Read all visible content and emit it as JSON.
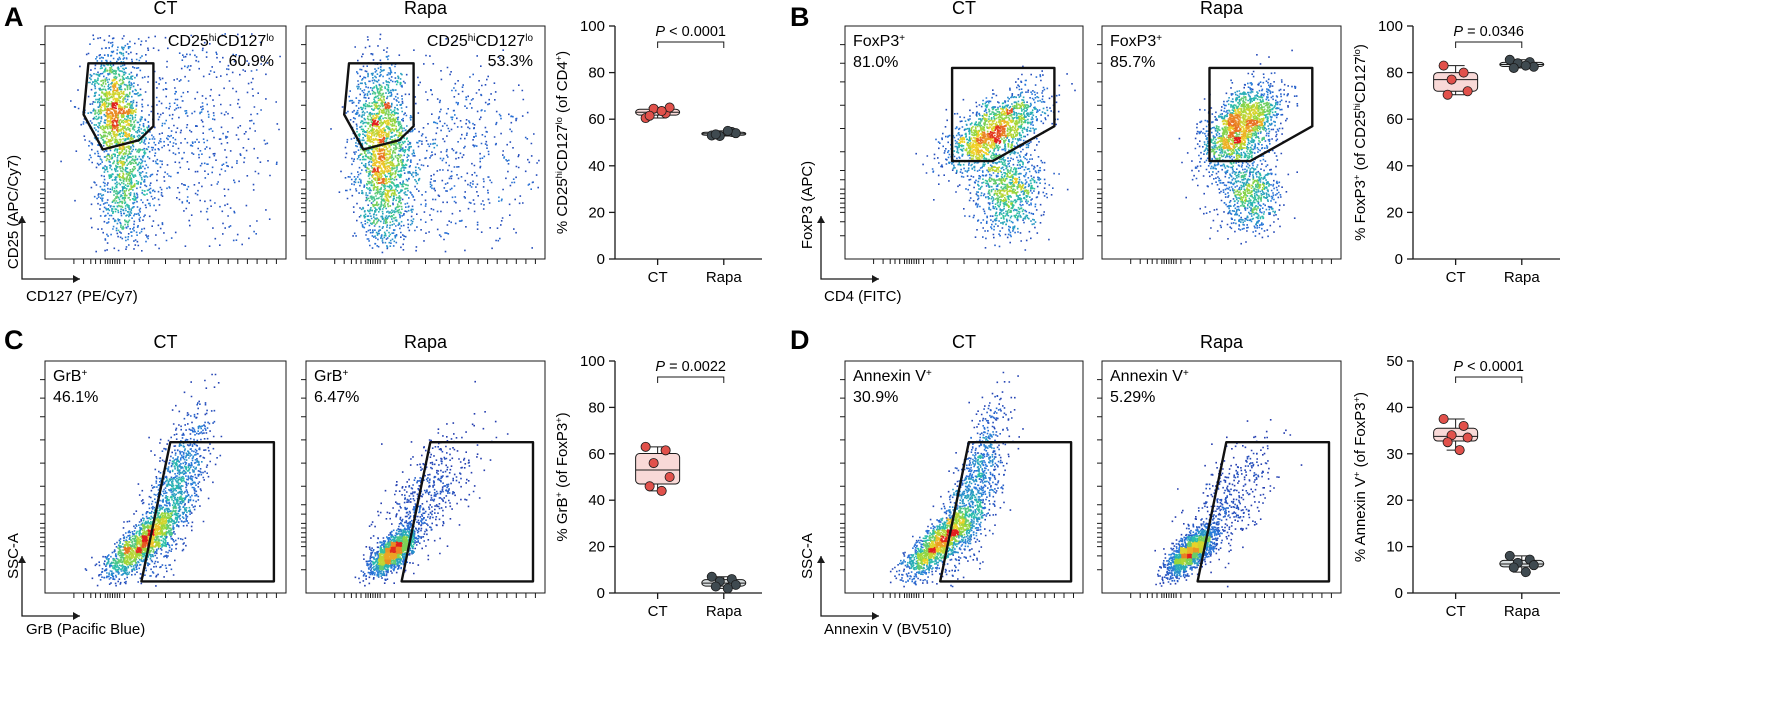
{
  "figure": {
    "panels": [
      {
        "letter": "A",
        "xlabel": "CD127 (PE/Cy7)",
        "ylabel": "CD25 (APC/Cy7)",
        "flow": [
          {
            "title": "CT",
            "gate_label": "CD25hiCD127lo",
            "percent": "60.9%",
            "gate": "A",
            "pop": "A_ct"
          },
          {
            "title": "Rapa",
            "gate_label": "CD25hiCD127lo",
            "percent": "53.3%",
            "gate": "A",
            "pop": "A_rapa"
          }
        ]
      },
      {
        "letter": "B",
        "xlabel": "CD4 (FITC)",
        "ylabel": "FoxP3 (APC)",
        "flow": [
          {
            "title": "CT",
            "gate_label": "FoxP3+",
            "percent": "81.0%",
            "gate": "B",
            "pop": "B_ct"
          },
          {
            "title": "Rapa",
            "gate_label": "FoxP3+",
            "percent": "85.7%",
            "gate": "B",
            "pop": "B_rapa"
          }
        ]
      },
      {
        "letter": "C",
        "xlabel": "GrB (Pacific Blue)",
        "ylabel": "SSC-A",
        "flow": [
          {
            "title": "CT",
            "gate_label": "GrB+",
            "percent": "46.1%",
            "gate": "C",
            "pop": "C_ct"
          },
          {
            "title": "Rapa",
            "gate_label": "GrB+",
            "percent": "6.47%",
            "gate": "C",
            "pop": "C_rapa"
          }
        ]
      },
      {
        "letter": "D",
        "xlabel": "Annexin V (BV510)",
        "ylabel": "SSC-A",
        "flow": [
          {
            "title": "CT",
            "gate_label": "Annexin V+",
            "percent": "30.9%",
            "gate": "C",
            "pop": "D_ct"
          },
          {
            "title": "Rapa",
            "gate_label": "Annexin V+",
            "percent": "5.29%",
            "gate": "C",
            "pop": "D_rapa"
          }
        ]
      }
    ]
  },
  "colors": {
    "ct_fill": "#f9d9d7",
    "ct_point": "#e1514b",
    "rapa_fill": "#d9dedf",
    "rapa_point": "#3f4a50",
    "axis": "#1a1a1a"
  },
  "chart_data": [
    {
      "type": "box",
      "panel": "A",
      "categories": [
        "CT",
        "Rapa"
      ],
      "ylabel": "% CD25hiCD127lo (of CD4+)",
      "ylim": [
        0,
        100
      ],
      "yticks": [
        0,
        20,
        40,
        60,
        80,
        100
      ],
      "pvalue": "P < 0.0001",
      "series": [
        {
          "name": "CT",
          "values": [
            60.5,
            62.5,
            64.5,
            65.0,
            61.5,
            63.5
          ]
        },
        {
          "name": "Rapa",
          "values": [
            53.0,
            54.5,
            52.8,
            54.0,
            53.5,
            55.0
          ]
        }
      ]
    },
    {
      "type": "box",
      "panel": "B",
      "categories": [
        "CT",
        "Rapa"
      ],
      "ylabel": "% FoxP3+ (of CD25hiCD127lo)",
      "ylim": [
        0,
        100
      ],
      "yticks": [
        0,
        20,
        40,
        60,
        80,
        100
      ],
      "pvalue": "P = 0.0346",
      "series": [
        {
          "name": "CT",
          "values": [
            83.0,
            80.0,
            77.0,
            72.0,
            70.5
          ]
        },
        {
          "name": "Rapa",
          "values": [
            85.5,
            84.5,
            84.0,
            82.5,
            82.0,
            83.0
          ]
        }
      ]
    },
    {
      "type": "box",
      "panel": "C",
      "categories": [
        "CT",
        "Rapa"
      ],
      "ylabel": "% GrB+ (of FoxP3+)",
      "ylim": [
        0,
        100
      ],
      "yticks": [
        0,
        20,
        40,
        60,
        80,
        100
      ],
      "pvalue": "P = 0.0022",
      "series": [
        {
          "name": "CT",
          "values": [
            63.0,
            61.5,
            56.0,
            50.0,
            46.0,
            44.0
          ]
        },
        {
          "name": "Rapa",
          "values": [
            7.0,
            6.0,
            5.0,
            3.5,
            2.8,
            2.0
          ]
        }
      ]
    },
    {
      "type": "box",
      "panel": "D",
      "categories": [
        "CT",
        "Rapa"
      ],
      "ylabel": "% Annexin V+ (of FoxP3+)",
      "ylim": [
        0,
        50
      ],
      "yticks": [
        0,
        10,
        20,
        30,
        40,
        50
      ],
      "pvalue": "P < 0.0001",
      "series": [
        {
          "name": "CT",
          "values": [
            37.5,
            36.0,
            34.0,
            33.5,
            32.5,
            30.8
          ]
        },
        {
          "name": "Rapa",
          "values": [
            8.0,
            7.2,
            6.5,
            6.0,
            5.5,
            4.5
          ]
        }
      ]
    }
  ]
}
